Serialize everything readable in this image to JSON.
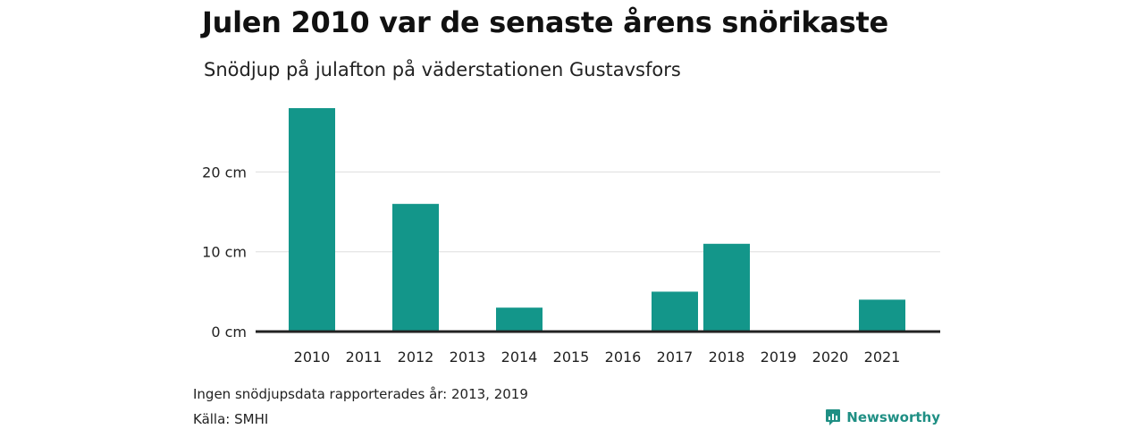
{
  "chart_data": {
    "type": "bar",
    "title": "Julen 2010 var de senaste årens snörikaste",
    "subtitle": "Snödjup på julafton på väderstationen Gustavsfors",
    "categories": [
      "2010",
      "2011",
      "2012",
      "2013",
      "2014",
      "2015",
      "2016",
      "2017",
      "2018",
      "2019",
      "2020",
      "2021"
    ],
    "values": [
      28,
      0,
      16,
      0,
      3,
      0,
      0,
      5,
      11,
      0,
      0,
      4
    ],
    "ylim": [
      0,
      28
    ],
    "yticks": [
      0,
      10,
      20
    ],
    "ytick_labels": [
      "0 cm",
      "10 cm",
      "20 cm"
    ],
    "xlabel": "",
    "ylabel": "",
    "grid": true,
    "bar_color": "#13968a",
    "grid_color": "#dddddd",
    "axis_color": "#222222"
  },
  "footer": {
    "note": "Ingen snödjupsdata rapporterades år: 2013, 2019",
    "source": "Källa: SMHI",
    "brand": "Newsworthy",
    "brand_color": "#1f8f84"
  }
}
